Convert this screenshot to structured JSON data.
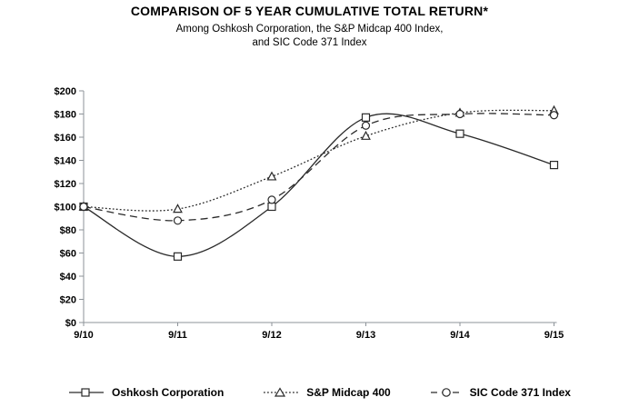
{
  "header": {
    "title": "COMPARISON OF 5 YEAR CUMULATIVE TOTAL RETURN*",
    "subtitle_line1": "Among Oshkosh Corporation, the S&P Midcap 400 Index,",
    "subtitle_line2": "and SIC Code 371 Index"
  },
  "chart_data": {
    "type": "line",
    "title": "COMPARISON OF 5 YEAR CUMULATIVE TOTAL RETURN*",
    "subtitle": "Among Oshkosh Corporation, the S&P Midcap 400 Index, and SIC Code 371 Index",
    "categories": [
      "9/10",
      "9/11",
      "9/12",
      "9/13",
      "9/14",
      "9/15"
    ],
    "series": [
      {
        "name": "Oshkosh Corporation",
        "marker": "square",
        "line_style": "solid",
        "values": [
          100,
          57,
          100,
          177,
          163,
          136
        ]
      },
      {
        "name": "S&P Midcap 400",
        "marker": "triangle",
        "line_style": "dotted",
        "values": [
          100,
          98,
          126,
          161,
          181,
          183
        ]
      },
      {
        "name": "SIC Code 371 Index",
        "marker": "circle",
        "line_style": "dashed",
        "values": [
          100,
          88,
          106,
          170,
          180,
          179
        ]
      }
    ],
    "y_ticks": [
      "$0",
      "$20",
      "$40",
      "$60",
      "$80",
      "$100",
      "$120",
      "$140",
      "$160",
      "$180",
      "$200"
    ],
    "ylim": [
      0,
      200
    ],
    "xlabel": "",
    "ylabel": "",
    "grid": false,
    "smoothed_lines": true,
    "legend_position": "bottom",
    "colors": {
      "line": "#2a2a2a",
      "axis": "#8d9399",
      "text": "#000000",
      "background": "#ffffff"
    }
  }
}
